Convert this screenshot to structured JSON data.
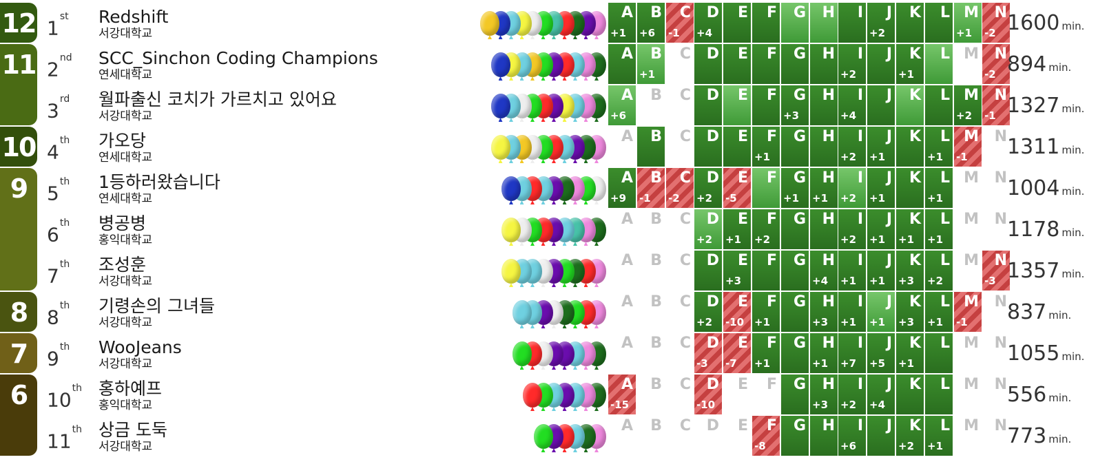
{
  "problems": [
    "A",
    "B",
    "C",
    "D",
    "E",
    "F",
    "G",
    "H",
    "I",
    "J",
    "K",
    "L",
    "M",
    "N"
  ],
  "penalty_unit": "min.",
  "solved_groups": [
    {
      "count": "12",
      "color": "#335a10",
      "rows": [
        0
      ]
    },
    {
      "count": "11",
      "color": "#4a6b14",
      "rows": [
        1,
        2
      ]
    },
    {
      "count": "10",
      "color": "#334f0c",
      "rows": [
        3
      ]
    },
    {
      "count": "9",
      "color": "#617018",
      "rows": [
        4,
        5,
        6
      ]
    },
    {
      "count": "8",
      "color": "#4a5410",
      "rows": [
        7
      ]
    },
    {
      "count": "7",
      "color": "#706018",
      "rows": [
        8
      ]
    },
    {
      "count": "6",
      "color": "#4a3c0a",
      "rows": [
        9,
        10
      ]
    }
  ],
  "teams": [
    {
      "rank": "1",
      "rank_suffix": "st",
      "name": "Redshift",
      "univ": "서강대학교",
      "penalty": "1600",
      "balloons": [
        "#f3c825",
        "#1f37c4",
        "#6fd0e0",
        "#f5f542",
        "#eeeeee",
        "#22dd22",
        "#47c2a8",
        "#ff2a2a",
        "#1d6d1d",
        "#6a0dad",
        "#ee88dd"
      ],
      "cells": [
        [
          "solved",
          "+1"
        ],
        [
          "solved",
          "+6"
        ],
        [
          "failed",
          "-1"
        ],
        [
          "solved",
          "+4"
        ],
        [
          "solved",
          ""
        ],
        [
          "solved",
          ""
        ],
        [
          "first",
          ""
        ],
        [
          "first",
          ""
        ],
        [
          "solved",
          ""
        ],
        [
          "solved",
          "+2"
        ],
        [
          "solved",
          ""
        ],
        [
          "solved",
          ""
        ],
        [
          "first",
          "+1"
        ],
        [
          "failed",
          "-2"
        ]
      ]
    },
    {
      "rank": "2",
      "rank_suffix": "nd",
      "name": "SCC_Sinchon Coding Champions",
      "univ": "연세대학교",
      "penalty": "894",
      "balloons": [
        "#1f37c4",
        "#f5f542",
        "#6fd0e0",
        "#f3c825",
        "#22dd22",
        "#6a0dad",
        "#ff2a2a",
        "#6fd0e0",
        "#ee88dd",
        "#1d6d1d"
      ],
      "cells": [
        [
          "solved",
          ""
        ],
        [
          "first",
          "+1"
        ],
        [
          "none",
          ""
        ],
        [
          "solved",
          ""
        ],
        [
          "solved",
          ""
        ],
        [
          "solved",
          ""
        ],
        [
          "solved",
          ""
        ],
        [
          "solved",
          ""
        ],
        [
          "solved",
          "+2"
        ],
        [
          "solved",
          ""
        ],
        [
          "solved",
          "+1"
        ],
        [
          "first",
          ""
        ],
        [
          "none",
          ""
        ],
        [
          "failed",
          "-2"
        ]
      ]
    },
    {
      "rank": "3",
      "rank_suffix": "rd",
      "name": "월파출신 코치가 가르치고 있어요",
      "univ": "서강대학교",
      "penalty": "1327",
      "balloons": [
        "#1f37c4",
        "#6fd0e0",
        "#eeeeee",
        "#22dd22",
        "#ff2a2a",
        "#6a0dad",
        "#f5f542",
        "#6fd0e0",
        "#ee88dd",
        "#1d6d1d"
      ],
      "cells": [
        [
          "first",
          "+6"
        ],
        [
          "none",
          ""
        ],
        [
          "none",
          ""
        ],
        [
          "solved",
          ""
        ],
        [
          "first",
          ""
        ],
        [
          "solved",
          ""
        ],
        [
          "solved",
          "+3"
        ],
        [
          "solved",
          ""
        ],
        [
          "solved",
          "+4"
        ],
        [
          "solved",
          ""
        ],
        [
          "first",
          ""
        ],
        [
          "solved",
          ""
        ],
        [
          "solved",
          "+2"
        ],
        [
          "failed",
          "-1"
        ]
      ]
    },
    {
      "rank": "4",
      "rank_suffix": "th",
      "name": "가오당",
      "univ": "연세대학교",
      "penalty": "1311",
      "balloons": [
        "#f5f542",
        "#6fd0e0",
        "#f3c825",
        "#eeeeee",
        "#22dd22",
        "#ff2a2a",
        "#6fd0e0",
        "#6a0dad",
        "#1d6d1d",
        "#ee88dd"
      ],
      "cells": [
        [
          "none",
          ""
        ],
        [
          "solved",
          ""
        ],
        [
          "none",
          ""
        ],
        [
          "solved",
          ""
        ],
        [
          "solved",
          ""
        ],
        [
          "solved",
          "+1"
        ],
        [
          "solved",
          ""
        ],
        [
          "solved",
          ""
        ],
        [
          "solved",
          "+2"
        ],
        [
          "solved",
          "+1"
        ],
        [
          "solved",
          ""
        ],
        [
          "solved",
          "+1"
        ],
        [
          "failed",
          "-1"
        ],
        [
          "none",
          ""
        ]
      ]
    },
    {
      "rank": "5",
      "rank_suffix": "th",
      "name": "1등하러왔습니다",
      "univ": "연세대학교",
      "penalty": "1004",
      "balloons": [
        "#1f37c4",
        "#6fd0e0",
        "#ff2a2a",
        "#6fd0e0",
        "#6a0dad",
        "#1d6d1d",
        "#ee88dd",
        "#22dd22",
        "#eeeeee"
      ],
      "cells": [
        [
          "solved",
          "+9"
        ],
        [
          "failed",
          "-1"
        ],
        [
          "failed",
          "-2"
        ],
        [
          "solved",
          "+2"
        ],
        [
          "failed",
          "-5"
        ],
        [
          "first",
          ""
        ],
        [
          "solved",
          "+1"
        ],
        [
          "solved",
          "+1"
        ],
        [
          "first",
          "+2"
        ],
        [
          "solved",
          "+1"
        ],
        [
          "solved",
          ""
        ],
        [
          "solved",
          "+1"
        ],
        [
          "none",
          ""
        ],
        [
          "none",
          ""
        ]
      ]
    },
    {
      "rank": "6",
      "rank_suffix": "th",
      "name": "병공병",
      "univ": "홍익대학교",
      "penalty": "1178",
      "balloons": [
        "#f5f542",
        "#eeeeee",
        "#22dd22",
        "#ff2a2a",
        "#6a0dad",
        "#6fd0e0",
        "#47c2a8",
        "#ee88dd",
        "#1d6d1d"
      ],
      "cells": [
        [
          "none",
          ""
        ],
        [
          "none",
          ""
        ],
        [
          "none",
          ""
        ],
        [
          "first",
          "+2"
        ],
        [
          "solved",
          "+1"
        ],
        [
          "solved",
          "+2"
        ],
        [
          "solved",
          ""
        ],
        [
          "solved",
          ""
        ],
        [
          "solved",
          "+2"
        ],
        [
          "solved",
          "+1"
        ],
        [
          "solved",
          "+1"
        ],
        [
          "solved",
          "+1"
        ],
        [
          "none",
          ""
        ],
        [
          "none",
          ""
        ]
      ]
    },
    {
      "rank": "7",
      "rank_suffix": "th",
      "name": "조성훈",
      "univ": "서강대학교",
      "penalty": "1357",
      "balloons": [
        "#f5f542",
        "#6fd0e0",
        "#6fd0e0",
        "#eeeeee",
        "#6a0dad",
        "#22dd22",
        "#1d6d1d",
        "#ff2a2a",
        "#ee88dd"
      ],
      "cells": [
        [
          "none",
          ""
        ],
        [
          "none",
          ""
        ],
        [
          "none",
          ""
        ],
        [
          "solved",
          ""
        ],
        [
          "solved",
          "+3"
        ],
        [
          "solved",
          ""
        ],
        [
          "solved",
          ""
        ],
        [
          "solved",
          "+4"
        ],
        [
          "solved",
          "+1"
        ],
        [
          "solved",
          "+1"
        ],
        [
          "solved",
          "+3"
        ],
        [
          "solved",
          "+2"
        ],
        [
          "none",
          ""
        ],
        [
          "failed",
          "-3"
        ]
      ]
    },
    {
      "rank": "8",
      "rank_suffix": "th",
      "name": "기령손의 그녀들",
      "univ": "서강대학교",
      "penalty": "837",
      "balloons": [
        "#6fd0e0",
        "#6fd0e0",
        "#6a0dad",
        "#eeeeee",
        "#1d6d1d",
        "#22dd22",
        "#ff2a2a",
        "#ee88dd"
      ],
      "cells": [
        [
          "none",
          ""
        ],
        [
          "none",
          ""
        ],
        [
          "none",
          ""
        ],
        [
          "solved",
          "+2"
        ],
        [
          "failed",
          "-10"
        ],
        [
          "solved",
          "+1"
        ],
        [
          "solved",
          ""
        ],
        [
          "solved",
          "+3"
        ],
        [
          "solved",
          "+1"
        ],
        [
          "first",
          "+1"
        ],
        [
          "solved",
          "+3"
        ],
        [
          "solved",
          "+1"
        ],
        [
          "failed",
          "-1"
        ],
        [
          "none",
          ""
        ]
      ]
    },
    {
      "rank": "9",
      "rank_suffix": "th",
      "name": "WooJeans",
      "univ": "서강대학교",
      "penalty": "1055",
      "balloons": [
        "#22dd22",
        "#ff2a2a",
        "#eeeeee",
        "#6a0dad",
        "#6a0dad",
        "#6fd0e0",
        "#ee88dd",
        "#1d6d1d"
      ],
      "cells": [
        [
          "none",
          ""
        ],
        [
          "none",
          ""
        ],
        [
          "none",
          ""
        ],
        [
          "failed",
          "-3"
        ],
        [
          "failed",
          "-7"
        ],
        [
          "solved",
          "+1"
        ],
        [
          "solved",
          ""
        ],
        [
          "solved",
          "+1"
        ],
        [
          "solved",
          "+7"
        ],
        [
          "solved",
          "+5"
        ],
        [
          "solved",
          "+1"
        ],
        [
          "solved",
          ""
        ],
        [
          "none",
          ""
        ],
        [
          "none",
          ""
        ]
      ]
    },
    {
      "rank": "10",
      "rank_suffix": "th",
      "name": "홍하예프",
      "univ": "홍익대학교",
      "penalty": "556",
      "balloons": [
        "#ff2a2a",
        "#22dd22",
        "#6fd0e0",
        "#6a0dad",
        "#6fd0e0",
        "#ee88dd",
        "#1d6d1d"
      ],
      "cells": [
        [
          "failed",
          "-15"
        ],
        [
          "none",
          ""
        ],
        [
          "none",
          ""
        ],
        [
          "failed",
          "-10"
        ],
        [
          "none",
          ""
        ],
        [
          "none",
          ""
        ],
        [
          "solved",
          ""
        ],
        [
          "solved",
          "+3"
        ],
        [
          "solved",
          "+2"
        ],
        [
          "solved",
          "+4"
        ],
        [
          "solved",
          ""
        ],
        [
          "solved",
          ""
        ],
        [
          "none",
          ""
        ],
        [
          "none",
          ""
        ]
      ]
    },
    {
      "rank": "11",
      "rank_suffix": "th",
      "name": "상금 도둑",
      "univ": "서강대학교",
      "penalty": "773",
      "balloons": [
        "#22dd22",
        "#6a0dad",
        "#ff2a2a",
        "#6fd0e0",
        "#1d6d1d",
        "#ee88dd"
      ],
      "cells": [
        [
          "none",
          ""
        ],
        [
          "none",
          ""
        ],
        [
          "none",
          ""
        ],
        [
          "none",
          ""
        ],
        [
          "none",
          ""
        ],
        [
          "failed",
          "-8"
        ],
        [
          "solved",
          ""
        ],
        [
          "solved",
          ""
        ],
        [
          "solved",
          "+6"
        ],
        [
          "solved",
          ""
        ],
        [
          "solved",
          "+2"
        ],
        [
          "solved",
          "+1"
        ],
        [
          "none",
          ""
        ],
        [
          "none",
          ""
        ]
      ]
    }
  ]
}
